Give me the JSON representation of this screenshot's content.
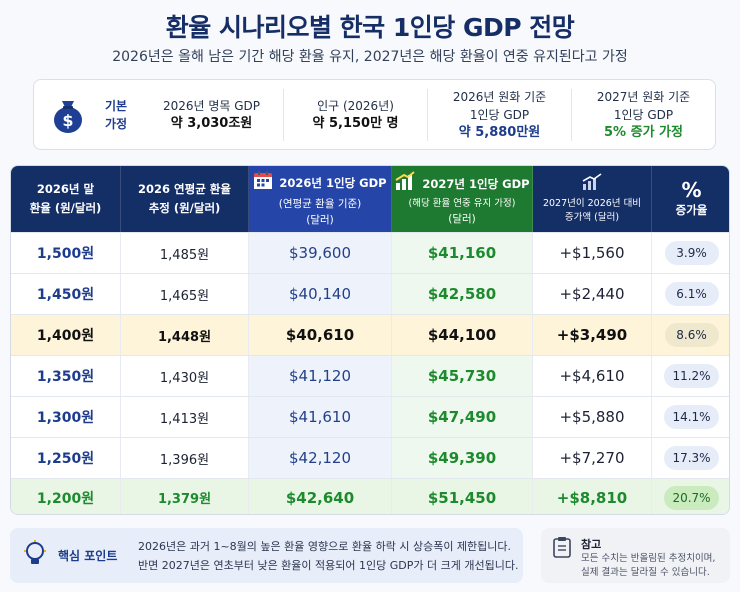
{
  "title": "환율 시나리오별 한국 1인당 GDP 전망",
  "subtitle": "2026년은 올해 남은 기간 해당 환율 유지, 2027년은 해당 환율이 연중 유지된다고 가정",
  "assumptions": {
    "label_line1": "기본",
    "label_line2": "가정",
    "items": [
      {
        "line1": "2026년 명목 GDP",
        "line2": "",
        "value": "약 3,030조원"
      },
      {
        "line1": "인구 (2026년)",
        "line2": "",
        "value": "약 5,150만 명"
      },
      {
        "line1": "2026년 원화 기준",
        "line2": "1인당 GDP",
        "value": "약 5,880만원"
      },
      {
        "line1": "2027년 원화 기준",
        "line2": "1인당 GDP",
        "value": "5% 증가 가정"
      }
    ]
  },
  "table": {
    "headers": [
      {
        "line1": "2026년 말",
        "line2": "환율 (원/달러)",
        "line3": ""
      },
      {
        "line1": "2026 연평균 환율",
        "line2": "추정 (원/달러)",
        "line3": ""
      },
      {
        "line1": "2026년 1인당 GDP",
        "line2": "(연평균 환율 기준)",
        "line3": "(달러)"
      },
      {
        "line1": "2027년 1인당 GDP",
        "line2": "(해당 환율 연중 유지 가정)",
        "line3": "(달러)"
      },
      {
        "line1": "2027년이 2026년 대비",
        "line2": "증가액 (달러)",
        "line3": ""
      },
      {
        "line1": "증가율",
        "line2": "",
        "line3": ""
      }
    ],
    "rows": [
      {
        "rate": "1,500원",
        "avg": "1,485원",
        "gdp2026": "$39,600",
        "gdp2027": "$41,160",
        "increase": "+$1,560",
        "growth": "3.9%"
      },
      {
        "rate": "1,450원",
        "avg": "1,465원",
        "gdp2026": "$40,140",
        "gdp2027": "$42,580",
        "increase": "+$2,440",
        "growth": "6.1%"
      },
      {
        "rate": "1,400원",
        "avg": "1,448원",
        "gdp2026": "$40,610",
        "gdp2027": "$44,100",
        "increase": "+$3,490",
        "growth": "8.6%"
      },
      {
        "rate": "1,350원",
        "avg": "1,430원",
        "gdp2026": "$41,120",
        "gdp2027": "$45,730",
        "increase": "+$4,610",
        "growth": "11.2%"
      },
      {
        "rate": "1,300원",
        "avg": "1,413원",
        "gdp2026": "$41,610",
        "gdp2027": "$47,490",
        "increase": "+$5,880",
        "growth": "14.1%"
      },
      {
        "rate": "1,250원",
        "avg": "1,396원",
        "gdp2026": "$42,120",
        "gdp2027": "$49,390",
        "increase": "+$7,270",
        "growth": "17.3%"
      },
      {
        "rate": "1,200원",
        "avg": "1,379원",
        "gdp2026": "$42,640",
        "gdp2027": "$51,450",
        "increase": "+$8,810",
        "growth": "20.7%"
      }
    ]
  },
  "tip": {
    "label": "핵심 포인트",
    "line1": "2026년은 과거 1~8월의 높은 환율 영향으로 환율 하락 시 상승폭이 제한됩니다.",
    "line2": "반면 2027년은 연초부터 낮은 환율이 적용되어 1인당 GDP가 더 크게 개선됩니다."
  },
  "note": {
    "title": "참고",
    "line1": "모든 수치는 반올림된 추정치이며,",
    "line2": "실제 결과는 달라질 수 있습니다."
  },
  "colors": {
    "header_navy": "#142e66",
    "header_blue": "#2546a8",
    "header_green": "#1f7a31",
    "highlight_row": "#fdf4d9",
    "best_row": "#e9f6e6"
  },
  "icons": [
    "money-bag-icon",
    "calendar-icon",
    "bar-chart-icon",
    "trend-chart-icon",
    "percent-icon",
    "lightbulb-icon",
    "clipboard-icon"
  ]
}
